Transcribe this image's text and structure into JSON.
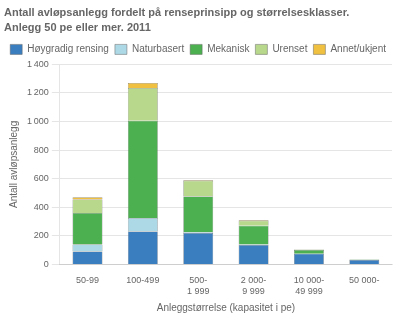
{
  "chart_data": {
    "type": "bar",
    "stacked": true,
    "title": "Antall avløpsanlegg fordelt på renseprinsipp og størrelsesklasser.",
    "subtitle": "Anlegg 50 pe eller mer. 2011",
    "ylabel": "Antall avløpsanlegg",
    "xlabel": "Anleggstørrelse (kapasitet i pe)",
    "categories": [
      "50-99",
      "100-499",
      "500-\n1 999",
      "2 000-\n9 999",
      "10 000-\n49 999",
      "50 000-"
    ],
    "series": [
      {
        "name": "Høygradig rensing",
        "color": "#3A7EBF",
        "values": [
          90,
          230,
          220,
          135,
          75,
          30
        ]
      },
      {
        "name": "Naturbasert",
        "color": "#ADD8E6",
        "values": [
          50,
          95,
          5,
          5,
          0,
          0
        ]
      },
      {
        "name": "Mekanisk",
        "color": "#4CAF50",
        "values": [
          220,
          680,
          250,
          130,
          25,
          5
        ]
      },
      {
        "name": "Urenset",
        "color": "#B8D98B",
        "values": [
          95,
          230,
          110,
          35,
          5,
          0
        ]
      },
      {
        "name": "Annet/ukjent",
        "color": "#F0C040",
        "values": [
          15,
          35,
          5,
          5,
          0,
          0
        ]
      }
    ],
    "ylim": [
      0,
      1400
    ],
    "yticks": [
      0,
      200,
      400,
      600,
      800,
      {
        "value": 1000,
        "label": "1 000"
      },
      {
        "value": 1200,
        "label": "1 200"
      },
      {
        "value": 1400,
        "label": "1 400"
      }
    ],
    "grid": true,
    "legend": "upper right"
  }
}
